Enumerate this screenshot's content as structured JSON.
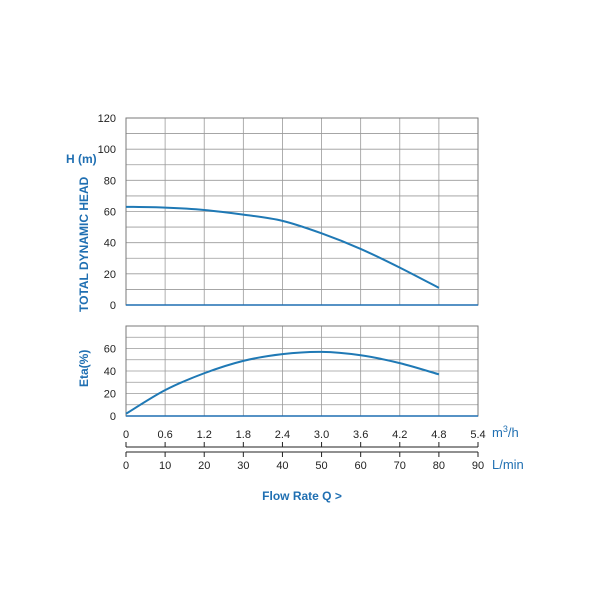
{
  "colors": {
    "accent": "#1f6fb2",
    "curve": "#1f79b5",
    "grid": "#9a9a9a"
  },
  "chart_data": [
    {
      "type": "line",
      "ylabel": "TOTAL DYNAMIC HEAD",
      "ylabel_unit": "H (m)",
      "yticks": [
        "0",
        "20",
        "40",
        "60",
        "80",
        "100",
        "120"
      ],
      "ylim": [
        0,
        120
      ],
      "xlim": [
        0,
        90
      ],
      "grid": true,
      "series": [
        {
          "x": [
            0,
            10,
            20,
            30,
            40,
            50,
            60,
            70,
            80
          ],
          "values": [
            63,
            62.5,
            61,
            58,
            54,
            46,
            36,
            24,
            11
          ]
        }
      ]
    },
    {
      "type": "line",
      "ylabel": "Eta(%)",
      "yticks": [
        "0",
        "20",
        "40",
        "60"
      ],
      "ylim": [
        0,
        80
      ],
      "xlim": [
        0,
        90
      ],
      "grid": true,
      "series": [
        {
          "x": [
            0,
            10,
            20,
            30,
            40,
            50,
            60,
            70,
            80
          ],
          "values": [
            2,
            23,
            38,
            49,
            55,
            57,
            54,
            47,
            37
          ]
        }
      ]
    }
  ],
  "x_axis_m3h": {
    "ticks": [
      "0",
      "0.6",
      "1.2",
      "1.8",
      "2.4",
      "3.0",
      "3.6",
      "4.2",
      "4.8",
      "5.4"
    ],
    "unit_base": "m",
    "unit_sup": "3",
    "unit_tail": "/h"
  },
  "x_axis_lmin": {
    "ticks": [
      "0",
      "10",
      "20",
      "30",
      "40",
      "50",
      "60",
      "70",
      "80",
      "90"
    ],
    "unit": "L/min"
  },
  "xlabel": "Flow Rate Q >"
}
